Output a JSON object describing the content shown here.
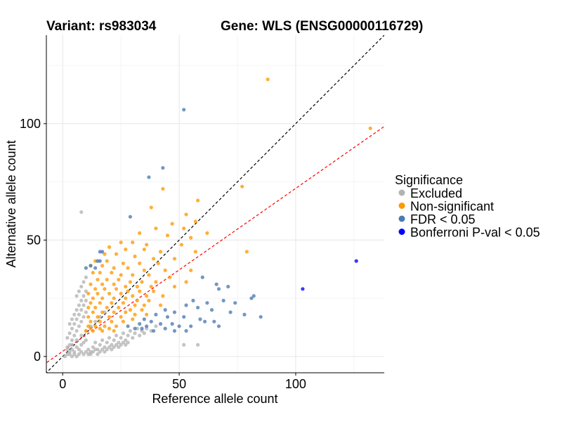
{
  "chart_data": {
    "type": "scatter",
    "title_left": "Variant: rs983034",
    "title_right": "Gene: WLS (ENSG00000116729)",
    "xlabel": "Reference allele count",
    "ylabel": "Alternative allele count",
    "xlim": [
      -7,
      138
    ],
    "ylim": [
      -7,
      138
    ],
    "x_ticks": [
      0,
      50,
      100
    ],
    "y_ticks": [
      0,
      50,
      100
    ],
    "grid": true,
    "legend": {
      "title": "Significance",
      "position": "right",
      "items": [
        {
          "label": "Excluded",
          "color": "#b3b3b3"
        },
        {
          "label": "Non-significant",
          "color": "#ff9900"
        },
        {
          "label": "FDR < 0.05",
          "color": "#4a7ab3"
        },
        {
          "label": "Bonferroni P-val < 0.05",
          "color": "#0000ff"
        }
      ]
    },
    "reference_lines": [
      {
        "label": "y = x",
        "slope": 1,
        "intercept": 0,
        "style": "dashed",
        "color": "#000000"
      },
      {
        "label": "fit",
        "slope": 0.7,
        "intercept": 2.2,
        "style": "dashed",
        "color": "#ff0000"
      }
    ],
    "series": [
      {
        "name": "Excluded",
        "color": "#b3b3b3",
        "points": [
          [
            8,
            62
          ],
          [
            2,
            1
          ],
          [
            3,
            2
          ],
          [
            4,
            3
          ],
          [
            5,
            2
          ],
          [
            6,
            4
          ],
          [
            7,
            3
          ],
          [
            8,
            5
          ],
          [
            9,
            6
          ],
          [
            10,
            7
          ],
          [
            3,
            5
          ],
          [
            4,
            7
          ],
          [
            5,
            9
          ],
          [
            6,
            11
          ],
          [
            7,
            13
          ],
          [
            8,
            15
          ],
          [
            9,
            17
          ],
          [
            10,
            19
          ],
          [
            2,
            8
          ],
          [
            3,
            10
          ],
          [
            4,
            12
          ],
          [
            5,
            14
          ],
          [
            6,
            16
          ],
          [
            7,
            18
          ],
          [
            8,
            20
          ],
          [
            9,
            22
          ],
          [
            10,
            24
          ],
          [
            6,
            26
          ],
          [
            7,
            28
          ],
          [
            8,
            30
          ],
          [
            9,
            32
          ],
          [
            10,
            34
          ],
          [
            11,
            3
          ],
          [
            12,
            2
          ],
          [
            13,
            4
          ],
          [
            14,
            6
          ],
          [
            15,
            3
          ],
          [
            16,
            5
          ],
          [
            17,
            7
          ],
          [
            18,
            4
          ],
          [
            19,
            6
          ],
          [
            20,
            8
          ],
          [
            21,
            5
          ],
          [
            22,
            7
          ],
          [
            23,
            9
          ],
          [
            24,
            6
          ],
          [
            25,
            8
          ],
          [
            26,
            10
          ],
          [
            27,
            7
          ],
          [
            28,
            9
          ],
          [
            29,
            11
          ],
          [
            30,
            8
          ],
          [
            31,
            10
          ],
          [
            32,
            12
          ],
          [
            33,
            9
          ],
          [
            34,
            11
          ],
          [
            35,
            10
          ],
          [
            36,
            12
          ],
          [
            38,
            11
          ],
          [
            40,
            13
          ],
          [
            52,
            5
          ],
          [
            58,
            5
          ],
          [
            1,
            0
          ],
          [
            2,
            3
          ],
          [
            3,
            1
          ],
          [
            4,
            0
          ],
          [
            5,
            1
          ],
          [
            6,
            0
          ],
          [
            7,
            1
          ],
          [
            8,
            2
          ],
          [
            9,
            1
          ],
          [
            10,
            2
          ],
          [
            11,
            1
          ],
          [
            12,
            1
          ],
          [
            13,
            2
          ],
          [
            14,
            3
          ],
          [
            15,
            1
          ],
          [
            16,
            2
          ],
          [
            17,
            3
          ],
          [
            18,
            2
          ],
          [
            19,
            3
          ],
          [
            20,
            4
          ],
          [
            21,
            3
          ],
          [
            22,
            4
          ],
          [
            23,
            5
          ],
          [
            24,
            4
          ],
          [
            25,
            5
          ],
          [
            26,
            6
          ],
          [
            27,
            5
          ],
          [
            28,
            6
          ],
          [
            3,
            14
          ],
          [
            4,
            16
          ],
          [
            5,
            18
          ],
          [
            6,
            20
          ],
          [
            7,
            22
          ],
          [
            8,
            24
          ],
          [
            9,
            26
          ],
          [
            10,
            28
          ],
          [
            2,
            4
          ],
          [
            4,
            5
          ],
          [
            6,
            7
          ],
          [
            8,
            9
          ],
          [
            10,
            11
          ],
          [
            12,
            13
          ],
          [
            14,
            15
          ],
          [
            16,
            17
          ],
          [
            18,
            19
          ]
        ]
      },
      {
        "name": "Non-significant",
        "color": "#ff9900",
        "points": [
          [
            88,
            119
          ],
          [
            132,
            98
          ],
          [
            77,
            73
          ],
          [
            43,
            72
          ],
          [
            58,
            67
          ],
          [
            38,
            64
          ],
          [
            53,
            61
          ],
          [
            57,
            58
          ],
          [
            47,
            57
          ],
          [
            40,
            55
          ],
          [
            52,
            55
          ],
          [
            62,
            53
          ],
          [
            33,
            53
          ],
          [
            45,
            52
          ],
          [
            55,
            51
          ],
          [
            25,
            49
          ],
          [
            30,
            49
          ],
          [
            36,
            48
          ],
          [
            51,
            48
          ],
          [
            20,
            47
          ],
          [
            27,
            46
          ],
          [
            35,
            46
          ],
          [
            42,
            45
          ],
          [
            57,
            45
          ],
          [
            79,
            45
          ],
          [
            18,
            44
          ],
          [
            23,
            44
          ],
          [
            31,
            43
          ],
          [
            39,
            42
          ],
          [
            48,
            42
          ],
          [
            14,
            41
          ],
          [
            19,
            41
          ],
          [
            26,
            40
          ],
          [
            33,
            40
          ],
          [
            41,
            40
          ],
          [
            12,
            39
          ],
          [
            17,
            39
          ],
          [
            22,
            38
          ],
          [
            28,
            38
          ],
          [
            35,
            37
          ],
          [
            44,
            37
          ],
          [
            55,
            37
          ],
          [
            13,
            36
          ],
          [
            16,
            36
          ],
          [
            21,
            36
          ],
          [
            25,
            35
          ],
          [
            30,
            35
          ],
          [
            37,
            35
          ],
          [
            46,
            34
          ],
          [
            15,
            33
          ],
          [
            19,
            33
          ],
          [
            24,
            33
          ],
          [
            29,
            32
          ],
          [
            34,
            32
          ],
          [
            40,
            32
          ],
          [
            53,
            32
          ],
          [
            12,
            31
          ],
          [
            17,
            31
          ],
          [
            22,
            31
          ],
          [
            27,
            30
          ],
          [
            32,
            30
          ],
          [
            38,
            30
          ],
          [
            48,
            30
          ],
          [
            14,
            29
          ],
          [
            18,
            29
          ],
          [
            23,
            29
          ],
          [
            28,
            28
          ],
          [
            33,
            28
          ],
          [
            39,
            28
          ],
          [
            11,
            27
          ],
          [
            15,
            27
          ],
          [
            20,
            27
          ],
          [
            25,
            27
          ],
          [
            30,
            26
          ],
          [
            36,
            26
          ],
          [
            43,
            26
          ],
          [
            13,
            25
          ],
          [
            17,
            25
          ],
          [
            22,
            25
          ],
          [
            27,
            25
          ],
          [
            32,
            24
          ],
          [
            37,
            24
          ],
          [
            12,
            23
          ],
          [
            16,
            23
          ],
          [
            21,
            23
          ],
          [
            26,
            23
          ],
          [
            31,
            22
          ],
          [
            35,
            22
          ],
          [
            42,
            22
          ],
          [
            11,
            21
          ],
          [
            14,
            21
          ],
          [
            19,
            21
          ],
          [
            24,
            21
          ],
          [
            29,
            20
          ],
          [
            34,
            20
          ],
          [
            13,
            19
          ],
          [
            17,
            19
          ],
          [
            22,
            19
          ],
          [
            27,
            19
          ],
          [
            31,
            18
          ],
          [
            36,
            18
          ],
          [
            11,
            17
          ],
          [
            15,
            17
          ],
          [
            20,
            17
          ],
          [
            25,
            17
          ],
          [
            30,
            16
          ],
          [
            12,
            15
          ],
          [
            16,
            15
          ],
          [
            21,
            15
          ],
          [
            26,
            15
          ],
          [
            11,
            13
          ],
          [
            14,
            13
          ],
          [
            18,
            13
          ],
          [
            23,
            13
          ],
          [
            12,
            12
          ],
          [
            16,
            12
          ],
          [
            20,
            12
          ],
          [
            10,
            11
          ],
          [
            13,
            11
          ],
          [
            17,
            11
          ],
          [
            22,
            11
          ]
        ]
      },
      {
        "name": "FDR < 0.05",
        "color": "#4a7ab3",
        "points": [
          [
            52,
            106
          ],
          [
            43,
            81
          ],
          [
            37,
            77
          ],
          [
            29,
            60
          ],
          [
            16,
            45
          ],
          [
            17,
            45
          ],
          [
            15,
            41
          ],
          [
            16,
            41
          ],
          [
            10,
            38
          ],
          [
            12,
            39
          ],
          [
            14,
            38
          ],
          [
            60,
            34
          ],
          [
            66,
            31
          ],
          [
            71,
            30
          ],
          [
            67,
            29
          ],
          [
            82,
            26
          ],
          [
            81,
            25
          ],
          [
            69,
            24
          ],
          [
            74,
            23
          ],
          [
            56,
            24
          ],
          [
            62,
            23
          ],
          [
            53,
            22
          ],
          [
            58,
            21
          ],
          [
            64,
            20
          ],
          [
            44,
            20
          ],
          [
            48,
            19
          ],
          [
            72,
            19
          ],
          [
            78,
            18
          ],
          [
            85,
            17
          ],
          [
            40,
            18
          ],
          [
            45,
            17
          ],
          [
            52,
            17
          ],
          [
            59,
            16
          ],
          [
            65,
            15
          ],
          [
            35,
            16
          ],
          [
            38,
            15
          ],
          [
            42,
            14
          ],
          [
            47,
            14
          ],
          [
            50,
            13
          ],
          [
            55,
            13
          ],
          [
            33,
            14
          ],
          [
            36,
            13
          ],
          [
            31,
            12
          ],
          [
            34,
            12
          ],
          [
            39,
            11
          ],
          [
            44,
            12
          ],
          [
            48,
            11
          ],
          [
            53,
            11
          ],
          [
            61,
            15
          ],
          [
            67,
            13
          ],
          [
            28,
            13
          ]
        ]
      },
      {
        "name": "Bonferroni P-val < 0.05",
        "color": "#0000ff",
        "points": [
          [
            103,
            29
          ],
          [
            126,
            41
          ]
        ]
      }
    ]
  }
}
